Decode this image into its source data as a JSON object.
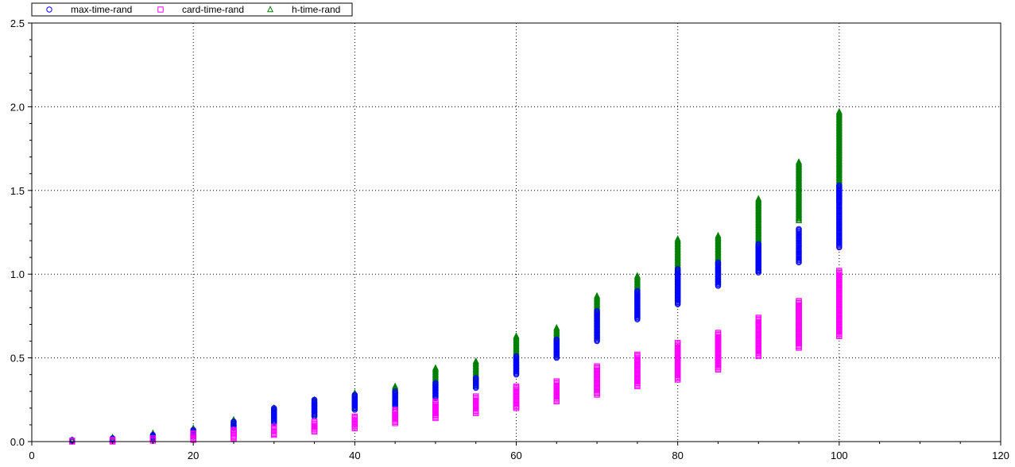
{
  "chart_data": {
    "type": "scatter",
    "title": "",
    "xlabel": "",
    "ylabel": "",
    "xlim": [
      0,
      120
    ],
    "ylim": [
      0,
      2.5
    ],
    "x_ticks": [
      "0",
      "20",
      "40",
      "60",
      "80",
      "100",
      "120"
    ],
    "y_ticks": [
      "0.0",
      "0.5",
      "1.0",
      "1.5",
      "2.0",
      "2.5"
    ],
    "grid": true,
    "legend": "top-left",
    "series": [
      {
        "name": "max-time-rand",
        "marker": "circle",
        "color": "#0000ff",
        "ranges": [
          {
            "x": 5,
            "min": 0.0,
            "max": 0.01
          },
          {
            "x": 10,
            "min": 0.005,
            "max": 0.02
          },
          {
            "x": 15,
            "min": 0.01,
            "max": 0.04
          },
          {
            "x": 20,
            "min": 0.03,
            "max": 0.07
          },
          {
            "x": 25,
            "min": 0.08,
            "max": 0.12
          },
          {
            "x": 30,
            "min": 0.11,
            "max": 0.2
          },
          {
            "x": 35,
            "min": 0.15,
            "max": 0.25
          },
          {
            "x": 40,
            "min": 0.19,
            "max": 0.28
          },
          {
            "x": 45,
            "min": 0.2,
            "max": 0.3
          },
          {
            "x": 50,
            "min": 0.26,
            "max": 0.35
          },
          {
            "x": 55,
            "min": 0.32,
            "max": 0.38
          },
          {
            "x": 60,
            "min": 0.4,
            "max": 0.51
          },
          {
            "x": 65,
            "min": 0.5,
            "max": 0.61
          },
          {
            "x": 70,
            "min": 0.6,
            "max": 0.78
          },
          {
            "x": 75,
            "min": 0.73,
            "max": 0.9
          },
          {
            "x": 80,
            "min": 0.82,
            "max": 1.03
          },
          {
            "x": 85,
            "min": 0.93,
            "max": 1.07
          },
          {
            "x": 90,
            "min": 1.01,
            "max": 1.18
          },
          {
            "x": 95,
            "min": 1.07,
            "max": 1.27
          },
          {
            "x": 100,
            "min": 1.16,
            "max": 1.53
          }
        ]
      },
      {
        "name": "card-time-rand",
        "marker": "square",
        "color": "#ff00ff",
        "ranges": [
          {
            "x": 5,
            "min": 0.0,
            "max": 0.005
          },
          {
            "x": 10,
            "min": 0.0,
            "max": 0.01
          },
          {
            "x": 15,
            "min": 0.005,
            "max": 0.02
          },
          {
            "x": 20,
            "min": 0.01,
            "max": 0.05
          },
          {
            "x": 25,
            "min": 0.02,
            "max": 0.07
          },
          {
            "x": 30,
            "min": 0.04,
            "max": 0.09
          },
          {
            "x": 35,
            "min": 0.06,
            "max": 0.12
          },
          {
            "x": 40,
            "min": 0.08,
            "max": 0.15
          },
          {
            "x": 45,
            "min": 0.11,
            "max": 0.19
          },
          {
            "x": 50,
            "min": 0.14,
            "max": 0.24
          },
          {
            "x": 55,
            "min": 0.17,
            "max": 0.27
          },
          {
            "x": 60,
            "min": 0.2,
            "max": 0.33
          },
          {
            "x": 65,
            "min": 0.24,
            "max": 0.36
          },
          {
            "x": 70,
            "min": 0.28,
            "max": 0.45
          },
          {
            "x": 75,
            "min": 0.33,
            "max": 0.52
          },
          {
            "x": 80,
            "min": 0.37,
            "max": 0.59
          },
          {
            "x": 85,
            "min": 0.43,
            "max": 0.65
          },
          {
            "x": 90,
            "min": 0.51,
            "max": 0.74
          },
          {
            "x": 95,
            "min": 0.56,
            "max": 0.84
          },
          {
            "x": 100,
            "min": 0.63,
            "max": 1.02
          }
        ]
      },
      {
        "name": "h-time-rand",
        "marker": "triangle",
        "color": "#008000",
        "ranges": [
          {
            "x": 5,
            "min": 0.0,
            "max": 0.01
          },
          {
            "x": 10,
            "min": 0.01,
            "max": 0.025
          },
          {
            "x": 15,
            "min": 0.02,
            "max": 0.05
          },
          {
            "x": 20,
            "min": 0.04,
            "max": 0.08
          },
          {
            "x": 25,
            "min": 0.08,
            "max": 0.13
          },
          {
            "x": 30,
            "min": 0.12,
            "max": 0.2
          },
          {
            "x": 35,
            "min": 0.16,
            "max": 0.25
          },
          {
            "x": 40,
            "min": 0.2,
            "max": 0.29
          },
          {
            "x": 45,
            "min": 0.22,
            "max": 0.33
          },
          {
            "x": 50,
            "min": 0.28,
            "max": 0.44
          },
          {
            "x": 55,
            "min": 0.33,
            "max": 0.48
          },
          {
            "x": 60,
            "min": 0.42,
            "max": 0.63
          },
          {
            "x": 65,
            "min": 0.52,
            "max": 0.68
          },
          {
            "x": 70,
            "min": 0.62,
            "max": 0.87
          },
          {
            "x": 75,
            "min": 0.75,
            "max": 0.99
          },
          {
            "x": 80,
            "min": 0.85,
            "max": 1.21
          },
          {
            "x": 85,
            "min": 0.95,
            "max": 1.23
          },
          {
            "x": 90,
            "min": 1.02,
            "max": 1.45
          },
          {
            "x": 95,
            "min": 1.32,
            "max": 1.67
          },
          {
            "x": 100,
            "min": 1.45,
            "max": 1.97
          }
        ]
      }
    ]
  }
}
